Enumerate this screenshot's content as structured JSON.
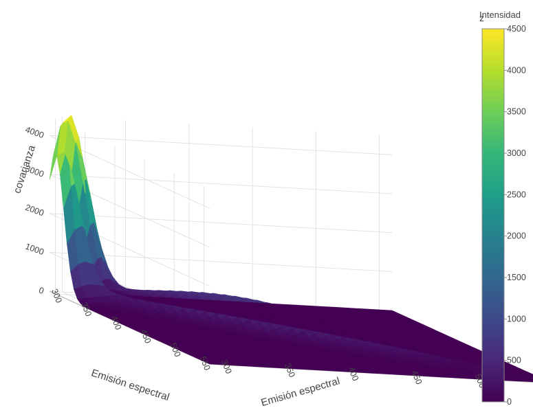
{
  "chart_data": {
    "type": "surface",
    "colorscale": "viridis",
    "colorbar": {
      "title": "Intensidad",
      "title_overlap": "z",
      "ticks": [
        "0",
        "500",
        "1000",
        "1500",
        "2000",
        "2500",
        "3000",
        "3500",
        "4000",
        "4500"
      ],
      "range": [
        0,
        4500
      ]
    },
    "axes": {
      "x": {
        "title": "Emisión espectral",
        "ticks": [
          "300",
          "350",
          "400",
          "450",
          "500",
          "550"
        ],
        "range": [
          290,
          560
        ]
      },
      "y": {
        "title": "Emisión espectral",
        "ticks": [
          "300",
          "350",
          "400",
          "450",
          "500",
          "550"
        ],
        "range": [
          290,
          560
        ]
      },
      "z": {
        "title": "covarianza",
        "ticks": [
          "0",
          "1000",
          "2000",
          "3000",
          "4000"
        ],
        "range": [
          0,
          4500
        ]
      }
    },
    "peak": {
      "x": 300,
      "y": 300,
      "z": 4500
    },
    "ridge_level": 750,
    "grid": true
  }
}
